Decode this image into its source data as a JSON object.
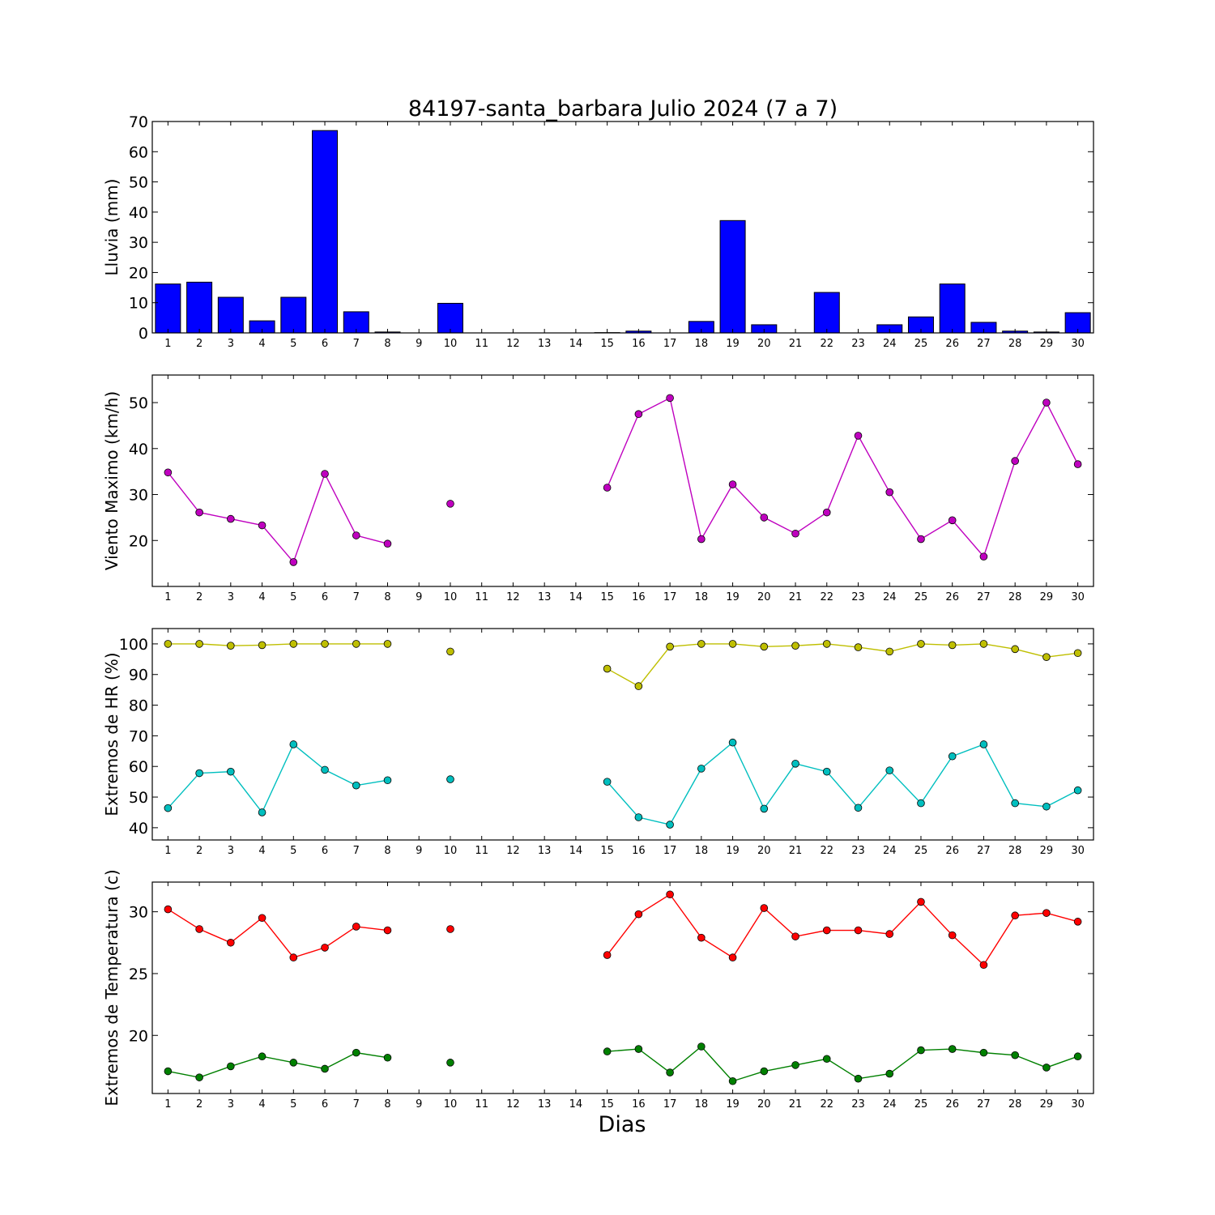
{
  "title": "84197-santa_barbara Julio 2024  (7 a 7)",
  "xlabel": "Dias",
  "colors": {
    "bar": "#0000ff",
    "wind": "#bf00bf",
    "hr_max": "#bfbf00",
    "hr_min": "#00bfbf",
    "t_max": "#ff0000",
    "t_min": "#008000"
  },
  "chart_data": [
    {
      "id": "lluvia",
      "type": "bar",
      "ylabel": "Lluvia (mm)",
      "ylim": [
        0,
        70
      ],
      "yticks": [
        0,
        10,
        20,
        30,
        40,
        50,
        60,
        70
      ],
      "categories": [
        "1",
        "2",
        "3",
        "4",
        "5",
        "6",
        "7",
        "8",
        "9",
        "10",
        "11",
        "12",
        "13",
        "14",
        "15",
        "16",
        "17",
        "18",
        "19",
        "20",
        "21",
        "22",
        "23",
        "24",
        "25",
        "26",
        "27",
        "28",
        "29",
        "30"
      ],
      "values": [
        16.2,
        16.8,
        11.8,
        4.0,
        11.8,
        67.0,
        7.0,
        0.3,
        0,
        9.8,
        0,
        0,
        0,
        0,
        0.1,
        0.6,
        0,
        3.8,
        37.2,
        2.7,
        0,
        13.4,
        0,
        2.7,
        5.3,
        16.2,
        3.5,
        0.6,
        0.3,
        6.7
      ]
    },
    {
      "id": "viento",
      "type": "line",
      "ylabel": "Viento Maximo (km/h)",
      "ylim": [
        10,
        56
      ],
      "yticks": [
        20,
        30,
        40,
        50
      ],
      "categories": [
        "1",
        "2",
        "3",
        "4",
        "5",
        "6",
        "7",
        "8",
        "9",
        "10",
        "11",
        "12",
        "13",
        "14",
        "15",
        "16",
        "17",
        "18",
        "19",
        "20",
        "21",
        "22",
        "23",
        "24",
        "25",
        "26",
        "27",
        "28",
        "29",
        "30"
      ],
      "series": [
        {
          "values": [
            34.8,
            26.1,
            24.7,
            23.3,
            15.3,
            34.5,
            21.1,
            19.3,
            null,
            28.0,
            null,
            null,
            null,
            null,
            31.5,
            47.5,
            51.0,
            20.3,
            32.2,
            25.0,
            21.5,
            26.1,
            42.8,
            30.5,
            20.3,
            24.4,
            16.5,
            37.3,
            50.0,
            36.6
          ]
        }
      ]
    },
    {
      "id": "hr",
      "type": "line",
      "ylabel": "Extremos de HR (%)",
      "ylim": [
        36,
        105
      ],
      "yticks": [
        40,
        50,
        60,
        70,
        80,
        90,
        100
      ],
      "categories": [
        "1",
        "2",
        "3",
        "4",
        "5",
        "6",
        "7",
        "8",
        "9",
        "10",
        "11",
        "12",
        "13",
        "14",
        "15",
        "16",
        "17",
        "18",
        "19",
        "20",
        "21",
        "22",
        "23",
        "24",
        "25",
        "26",
        "27",
        "28",
        "29",
        "30"
      ],
      "series": [
        {
          "values": [
            100,
            100,
            99.4,
            99.6,
            100,
            100,
            100,
            100,
            null,
            97.5,
            null,
            null,
            null,
            null,
            91.9,
            86.2,
            99.1,
            100,
            100,
            99.1,
            99.4,
            100,
            98.9,
            97.5,
            100,
            99.6,
            100,
            98.3,
            95.7,
            97.0
          ]
        },
        {
          "values": [
            46.4,
            57.8,
            58.3,
            45.0,
            67.2,
            58.9,
            53.8,
            55.5,
            null,
            55.8,
            null,
            null,
            null,
            null,
            55.0,
            43.4,
            41.0,
            59.3,
            67.8,
            46.2,
            60.9,
            58.3,
            46.5,
            58.7,
            48.0,
            63.3,
            67.2,
            48.0,
            46.9,
            52.2
          ]
        }
      ]
    },
    {
      "id": "temperatura",
      "type": "line",
      "ylabel": "Extremos de Temperatura (c)",
      "ylim": [
        15.3,
        32.4
      ],
      "yticks": [
        20,
        25,
        30
      ],
      "categories": [
        "1",
        "2",
        "3",
        "4",
        "5",
        "6",
        "7",
        "8",
        "9",
        "10",
        "11",
        "12",
        "13",
        "14",
        "15",
        "16",
        "17",
        "18",
        "19",
        "20",
        "21",
        "22",
        "23",
        "24",
        "25",
        "26",
        "27",
        "28",
        "29",
        "30"
      ],
      "series": [
        {
          "values": [
            30.2,
            28.6,
            27.5,
            29.5,
            26.3,
            27.1,
            28.8,
            28.5,
            null,
            28.6,
            null,
            null,
            null,
            null,
            26.5,
            29.8,
            31.4,
            27.9,
            26.3,
            30.3,
            28.0,
            28.5,
            28.5,
            28.2,
            30.8,
            28.1,
            25.7,
            29.7,
            29.9,
            29.2
          ]
        },
        {
          "values": [
            17.1,
            16.6,
            17.5,
            18.3,
            17.8,
            17.3,
            18.6,
            18.2,
            null,
            17.8,
            null,
            null,
            null,
            null,
            18.7,
            18.9,
            17.0,
            19.1,
            16.3,
            17.1,
            17.6,
            18.1,
            16.5,
            16.9,
            18.8,
            18.9,
            18.6,
            18.4,
            17.4,
            18.3
          ]
        }
      ]
    }
  ]
}
